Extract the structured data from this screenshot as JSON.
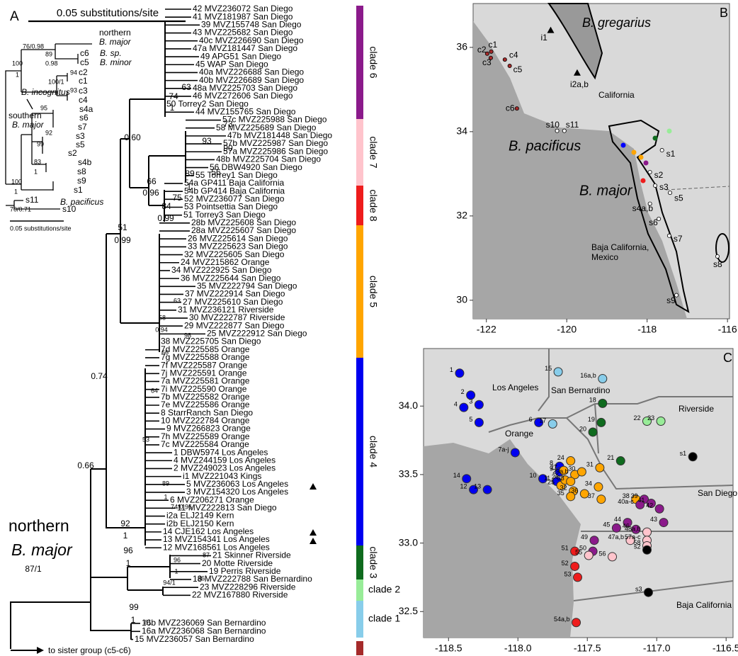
{
  "panel_a": {
    "label": "A",
    "scale_bar": "0.05 substitutions/site",
    "root_label": [
      "northern",
      "B. major",
      "87/1"
    ],
    "sister": "to sister group (c5-c6)",
    "clades": [
      {
        "name": "clade 6",
        "color": "#8b1a8b",
        "leaves": [
          "42 MVZ236072 San Diego",
          "41 MVZ181987 San Diego",
          "39 MVZ155748 San Diego",
          "43 MVZ225682 San Diego",
          "40c MVZ226690 San Diego",
          "47a MVZ181447 San Diego",
          "49 APG51 San Diego",
          "45 WAP San Diego",
          "40a MVZ226688 San Diego",
          "40b MVZ226689 San Diego",
          "48a MVZ225703 San Diego",
          "46 MVZ272606 San Diego",
          "50 Torrey2 San Diego",
          "44 MVZ155765 San Diego"
        ]
      },
      {
        "name": "clade 7",
        "color": "#ffc4cc",
        "leaves": [
          "57c MVZ225988 San Diego",
          "58 MVZ225689 San Diego",
          "47b MVZ181448 San Diego",
          "57b MVZ225987 San Diego",
          "57a MVZ225986 San Diego",
          "48b MVZ225704 San Diego",
          "56 DBW4920 San Diego",
          "55 Torrey1 San Diego"
        ]
      },
      {
        "name": "clade 8",
        "color": "#ee1c1c",
        "leaves": [
          "54a GP411 Baja California",
          "54b GP414 Baja California",
          "52 MVZ236077 San Diego",
          "53 Pointsettia San Diego",
          "51 Torrey3 San Diego"
        ]
      },
      {
        "name": "clade 5",
        "color": "#ffa500",
        "leaves": [
          "28b MVZ225608 San Diego",
          "28a MVZ225607 San Diego",
          "26 MVZ225614 San Diego",
          "33 MVZ225623 San Diego",
          "32 MVZ225605 San Diego",
          "24 MVZ215862 Orange",
          "34 MVZ222925 San Diego",
          "36 MVZ225644 San Diego",
          "35 MVZ222794 San Diego",
          "37 MVZ222914 San Diego",
          "27 MVZ225610 San Diego",
          "31 MVZ236121 Riverside",
          "30 MVZ222787 Riverside",
          "29 MVZ222877 San Diego",
          "25 MVZ222912 San Diego",
          "38 MVZ225705 San Diego"
        ]
      },
      {
        "name": "clade 4",
        "color": "#0000f0",
        "leaves": [
          "7d MVZ225585 Orange",
          "7g MVZ225588 Orange",
          "7f MVZ225587 Orange",
          "7j MVZ225591 Orange",
          "7a MVZ225581 Orange",
          "7i MVZ225590 Orange",
          "7b MVZ225582 Orange",
          "7e MVZ225586 Orange",
          "8 StarrRanch San Diego",
          "10 MVZ222784 Orange",
          "9 MVZ266823 Orange",
          "7h MVZ225589 Orange",
          "7c MVZ225584 Orange",
          "1 DBW5974 Los Angeles",
          "4 MVZ244159 Los Angeles",
          "2 MVZ249023 Los Angeles",
          "i1 MVZ221043 Kings",
          "5 MVZ236063 Los Angeles",
          "3 MVZ154320 Los Angeles",
          "6 MVZ206271 Orange",
          "11 MVZ222813 San Diego",
          "i2a ELJ2149 Kern",
          "i2b ELJ2150 Kern",
          "14 CJE162 Los Angeles",
          "13 MVZ154341 Los Angeles",
          "12 MVZ168561 Los Angeles"
        ]
      },
      {
        "name": "clade 3",
        "color": "#0f6b1e",
        "leaves": [
          "21 Skinner Riverside",
          "20 Motte Riverside",
          "19 Perris Riverside",
          "18 MVZ222788 San Bernardino"
        ]
      },
      {
        "name": "clade 2",
        "color": "#98ec98",
        "leaves": [
          "23 MVZ228296 Riverside",
          "22 MVZ167880 Riverside"
        ]
      },
      {
        "name": "clade 1",
        "color": "#88cdea",
        "leaves": [
          "16b MVZ236069 San Bernardino",
          "16a MVZ236068 San Bernardino",
          "15 MVZ236057 San Bernardino"
        ]
      }
    ],
    "supports": [
      "63",
      "74",
      "1",
      "0.60",
      "93",
      "73",
      "90",
      "56",
      "89",
      "1",
      "66",
      "0.96",
      "75",
      "84",
      "0.99",
      "51",
      "0.99",
      "63",
      "58",
      "0.94",
      "98",
      "66",
      "0.74",
      "64",
      "53",
      "89",
      "1",
      "74/0.96",
      "92",
      "1",
      "0.66",
      "96",
      "1",
      "87",
      "86",
      "94/1",
      "96",
      "1",
      "99",
      "1",
      "81"
    ],
    "inset": [
      "northern",
      "B. major",
      "76/0.98",
      "89",
      "0.98",
      "c6",
      "c5",
      "B. sp.",
      "B. minor",
      "100",
      "1",
      "94",
      "100/1",
      "93",
      "c2",
      "c1",
      "c3",
      "c4",
      "B. incognitus",
      "southern",
      "B. major",
      "95",
      "s4a",
      "s6",
      "s7",
      "92",
      "s3",
      "99",
      "s5",
      "s2",
      "83",
      "1",
      "s4b",
      "s8",
      "100",
      "1",
      "s9",
      "s1",
      "s11",
      "B. pacificus",
      "70/0.71",
      "s10",
      "0.05 substitutions/site"
    ]
  },
  "panel_b": {
    "label": "B",
    "xlim": [
      -122.33,
      -115.95
    ],
    "ylim": [
      29.56,
      37.04
    ],
    "xticks": [
      -122,
      -120,
      -118,
      -116
    ],
    "yticks": [
      30,
      32,
      34,
      36
    ],
    "places": [
      "B. gregarius",
      "California",
      "B. pacificus",
      "B. major",
      "Baja California,",
      "Mexico"
    ],
    "sites": [
      {
        "label": "c1",
        "lon": -121.88,
        "lat": 35.9,
        "color": "#a52a2a"
      },
      {
        "label": "c2",
        "lon": -121.98,
        "lat": 35.85,
        "color": "#a52a2a"
      },
      {
        "label": "c3",
        "lon": -121.89,
        "lat": 35.75,
        "color": "#a52a2a"
      },
      {
        "label": "c4",
        "lon": -121.54,
        "lat": 35.71,
        "color": "#a52a2a"
      },
      {
        "label": "c5",
        "lon": -121.42,
        "lat": 35.56,
        "color": "#a52a2a"
      },
      {
        "label": "c6",
        "lon": -121.24,
        "lat": 34.55,
        "color": "#a52a2a"
      },
      {
        "label": "s10",
        "lon": -120.24,
        "lat": 34.02,
        "color": "#000000"
      },
      {
        "label": "s11",
        "lon": -120.06,
        "lat": 34.02,
        "color": "#000000"
      },
      {
        "label": "s1",
        "lon": -117.63,
        "lat": 33.56,
        "color": "#000000"
      },
      {
        "label": "s2",
        "lon": -117.93,
        "lat": 33.04,
        "color": "#000000"
      },
      {
        "label": "s3",
        "lon": -117.8,
        "lat": 32.72,
        "color": "#000000"
      },
      {
        "label": "s4a,b",
        "lon": -117.93,
        "lat": 32.29,
        "color": "#000000"
      },
      {
        "label": "s5",
        "lon": -117.43,
        "lat": 32.55,
        "color": "#000000"
      },
      {
        "label": "s6",
        "lon": -117.71,
        "lat": 31.93,
        "color": "#000000"
      },
      {
        "label": "s7",
        "lon": -117.45,
        "lat": 31.53,
        "color": "#000000"
      },
      {
        "label": "s8",
        "lon": -116.25,
        "lat": 31.04,
        "color": "#000000"
      },
      {
        "label": "s9",
        "lon": -117.27,
        "lat": 30.12,
        "color": "#000000"
      },
      {
        "label": "i1",
        "lon": -120.4,
        "lat": 36.39,
        "color": "#000000",
        "marker": "triangle"
      },
      {
        "label": "i2a,b",
        "lon": -119.74,
        "lat": 35.38,
        "color": "#000000",
        "marker": "triangle"
      }
    ]
  },
  "panel_c": {
    "label": "C",
    "xlim": [
      -118.68,
      -116.45
    ],
    "ylim": [
      32.31,
      34.42
    ],
    "xticks": [
      {
        "value": -118.5,
        "label": "-118.5"
      },
      {
        "value": -118,
        "label": "-118.0"
      },
      {
        "value": -117.5,
        "label": "-117.5"
      },
      {
        "value": -117,
        "label": "-117.0"
      },
      {
        "value": -116.5,
        "label": "-116.5"
      }
    ],
    "yticks": [
      {
        "value": 32.5,
        "label": "32.5"
      },
      {
        "value": 33,
        "label": "33.0"
      },
      {
        "value": 33.5,
        "label": "33.5"
      },
      {
        "value": 34,
        "label": "34.0"
      }
    ],
    "regions": [
      "Los Angeles",
      "San Bernardino",
      "Riverside",
      "Orange",
      "San Diego",
      "Baja California"
    ],
    "points": [
      {
        "label": "1",
        "lon": -118.42,
        "lat": 34.24,
        "color": "#0000f0"
      },
      {
        "label": "2",
        "lon": -118.34,
        "lat": 34.08,
        "color": "#0000f0"
      },
      {
        "label": "3",
        "lon": -118.28,
        "lat": 34.01,
        "color": "#0000f0"
      },
      {
        "label": "4",
        "lon": -118.39,
        "lat": 33.99,
        "color": "#0000f0"
      },
      {
        "label": "5",
        "lon": -118.28,
        "lat": 33.88,
        "color": "#0000f0"
      },
      {
        "label": "6",
        "lon": -117.85,
        "lat": 33.88,
        "color": "#0000f0"
      },
      {
        "label": "7a-j",
        "lon": -118.02,
        "lat": 33.66,
        "color": "#0000f0"
      },
      {
        "label": "8",
        "lon": -117.7,
        "lat": 33.56,
        "color": "#0000f0"
      },
      {
        "label": "9",
        "lon": -117.7,
        "lat": 33.52,
        "color": "#0000f0"
      },
      {
        "label": "10",
        "lon": -117.82,
        "lat": 33.47,
        "color": "#0000f0"
      },
      {
        "label": "11",
        "lon": -117.72,
        "lat": 33.45,
        "color": "#0000f0"
      },
      {
        "label": "12",
        "lon": -118.32,
        "lat": 33.39,
        "color": "#0000f0"
      },
      {
        "label": "13",
        "lon": -118.22,
        "lat": 33.39,
        "color": "#0000f0"
      },
      {
        "label": "14",
        "lon": -118.37,
        "lat": 33.47,
        "color": "#0000f0"
      },
      {
        "label": "15",
        "lon": -117.71,
        "lat": 34.25,
        "color": "#88cdea"
      },
      {
        "label": "16a,b",
        "lon": -117.39,
        "lat": 34.2,
        "color": "#88cdea"
      },
      {
        "label": "17",
        "lon": -117.75,
        "lat": 33.87,
        "color": "#88cdea"
      },
      {
        "label": "18",
        "lon": -117.39,
        "lat": 34.02,
        "color": "#0f6b1e"
      },
      {
        "label": "19",
        "lon": -117.4,
        "lat": 33.88,
        "color": "#0f6b1e"
      },
      {
        "label": "20",
        "lon": -117.46,
        "lat": 33.81,
        "color": "#0f6b1e"
      },
      {
        "label": "21",
        "lon": -117.26,
        "lat": 33.6,
        "color": "#0f6b1e"
      },
      {
        "label": "22",
        "lon": -117.07,
        "lat": 33.89,
        "color": "#98ec98"
      },
      {
        "label": "23",
        "lon": -116.97,
        "lat": 33.89,
        "color": "#98ec98"
      },
      {
        "label": "24",
        "lon": -117.62,
        "lat": 33.6,
        "color": "#ffa500"
      },
      {
        "label": "25",
        "lon": -117.69,
        "lat": 33.42,
        "color": "#ffa500"
      },
      {
        "label": "26",
        "lon": -117.66,
        "lat": 33.46,
        "color": "#ffa500"
      },
      {
        "label": "27",
        "lon": -117.67,
        "lat": 33.53,
        "color": "#ffa500"
      },
      {
        "label": "29a,b",
        "lon": -117.59,
        "lat": 33.5,
        "color": "#ffa500"
      },
      {
        "label": "30",
        "lon": -117.54,
        "lat": 33.52,
        "color": "#ffa500"
      },
      {
        "label": "31",
        "lon": -117.41,
        "lat": 33.55,
        "color": "#ffa500"
      },
      {
        "label": "32",
        "lon": -117.6,
        "lat": 33.38,
        "color": "#ffa500"
      },
      {
        "label": "33",
        "lon": -117.62,
        "lat": 33.45,
        "color": "#ffa500"
      },
      {
        "label": "34",
        "lon": -117.42,
        "lat": 33.41,
        "color": "#ffa500"
      },
      {
        "label": "35",
        "lon": -117.62,
        "lat": 33.34,
        "color": "#ffa500"
      },
      {
        "label": "36",
        "lon": -117.52,
        "lat": 33.36,
        "color": "#ffa500"
      },
      {
        "label": "37",
        "lon": -117.4,
        "lat": 33.32,
        "color": "#ffa500"
      },
      {
        "label": "38",
        "lon": -117.15,
        "lat": 33.32,
        "color": "#ffa500"
      },
      {
        "label": "39",
        "lon": -117.09,
        "lat": 33.32,
        "color": "#8b1a8b"
      },
      {
        "label": "40a-c",
        "lon": -117.12,
        "lat": 33.28,
        "color": "#8b1a8b"
      },
      {
        "label": "41",
        "lon": -117.04,
        "lat": 33.29,
        "color": "#8b1a8b"
      },
      {
        "label": "42",
        "lon": -116.98,
        "lat": 33.25,
        "color": "#8b1a8b"
      },
      {
        "label": "43",
        "lon": -116.95,
        "lat": 33.15,
        "color": "#8b1a8b"
      },
      {
        "label": "44",
        "lon": -117.21,
        "lat": 33.15,
        "color": "#8b1a8b"
      },
      {
        "label": "45",
        "lon": -117.29,
        "lat": 33.11,
        "color": "#8b1a8b"
      },
      {
        "label": "46",
        "lon": -117.15,
        "lat": 33.1,
        "color": "#8b1a8b"
      },
      {
        "label": "47a,b",
        "lon": -117.19,
        "lat": 33.02,
        "color": "#ffc4cc"
      },
      {
        "label": "48a,b",
        "lon": -117.07,
        "lat": 33.08,
        "color": "#ffc4cc"
      },
      {
        "label": "49",
        "lon": -117.45,
        "lat": 33.02,
        "color": "#8b1a8b"
      },
      {
        "label": "50",
        "lon": -117.46,
        "lat": 32.94,
        "color": "#8b1a8b"
      },
      {
        "label": "51",
        "lon": -117.59,
        "lat": 32.94,
        "color": "#ee1c1c"
      },
      {
        "label": "52",
        "lon": -117.59,
        "lat": 32.83,
        "color": "#ee1c1c"
      },
      {
        "label": "53",
        "lon": -117.57,
        "lat": 32.75,
        "color": "#ee1c1c"
      },
      {
        "label": "54a,b",
        "lon": -117.58,
        "lat": 32.42,
        "color": "#ee1c1c"
      },
      {
        "label": "55",
        "lon": -117.49,
        "lat": 32.91,
        "color": "#ffc4cc"
      },
      {
        "label": "56",
        "lon": -117.32,
        "lat": 32.9,
        "color": "#ffc4cc"
      },
      {
        "label": "57a-c",
        "lon": -117.07,
        "lat": 33.02,
        "color": "#ffc4cc"
      },
      {
        "label": "58",
        "lon": -117.07,
        "lat": 32.98,
        "color": "#ffc4cc"
      },
      {
        "label": "s1",
        "lon": -116.74,
        "lat": 33.63,
        "color": "#000000"
      },
      {
        "label": "s2",
        "lon": -117.07,
        "lat": 32.95,
        "color": "#000000"
      },
      {
        "label": "s3",
        "lon": -117.06,
        "lat": 32.64,
        "color": "#000000"
      }
    ]
  }
}
